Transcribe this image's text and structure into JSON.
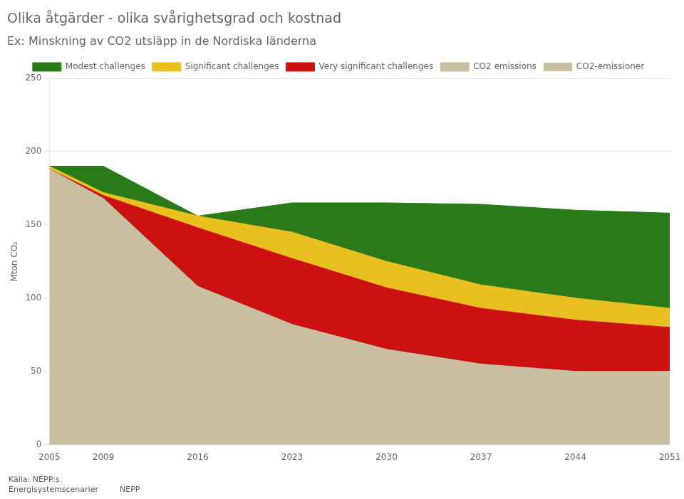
{
  "chart_data": {
    "type": "area",
    "stacked": true,
    "title": "Olika åtgärder - olika svårighetsgrad och kostnad",
    "subtitle": "Ex: Minskning av CO2 utsläpp in de Nordiska länderna",
    "ylabel": "Mton CO₂",
    "x": [
      2005,
      2009,
      2016,
      2023,
      2030,
      2037,
      2044,
      2051
    ],
    "series": [
      {
        "name": "CO2 emissions",
        "color": "#c8bfa0",
        "values": [
          188,
          168,
          108,
          82,
          65,
          55,
          50,
          50
        ]
      },
      {
        "name": "Very significant challenges",
        "color": "#cc1111",
        "values": [
          0,
          2,
          40,
          45,
          42,
          38,
          35,
          30
        ]
      },
      {
        "name": "Significant challenges",
        "color": "#e8c020",
        "values": [
          2,
          2,
          8,
          18,
          18,
          16,
          15,
          13
        ]
      },
      {
        "name": "Modest challenges",
        "color": "#2a7a1a",
        "values": [
          0,
          18,
          0,
          20,
          40,
          55,
          60,
          65
        ]
      }
    ],
    "xlim": [
      2005,
      2051
    ],
    "xticks": [
      2005,
      2009,
      2016,
      2023,
      2030,
      2037,
      2044,
      2051
    ],
    "ylim": [
      0,
      250
    ],
    "yticks": [
      0,
      50,
      100,
      150,
      200,
      250
    ],
    "grid": "y",
    "legend": "top",
    "annotations": [
      {
        "text": "CO2-emissioner",
        "color": "#c8bfa0"
      },
      {
        "text": "Källa: NEPP:s\nEnergisystemscenarier"
      },
      {
        "text": "NEPP"
      }
    ]
  }
}
